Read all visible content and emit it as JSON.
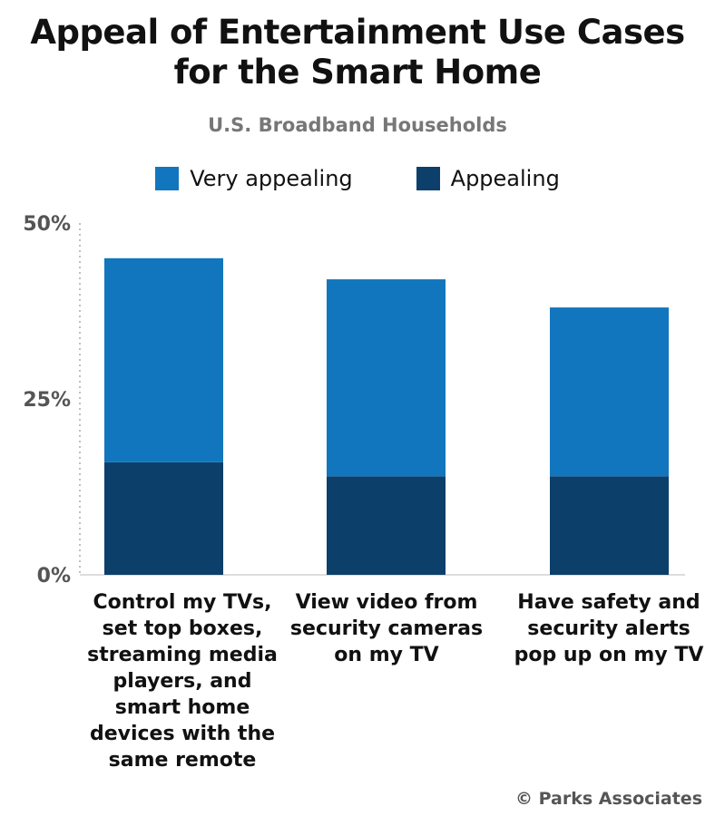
{
  "chart_data": {
    "type": "bar",
    "stacked": true,
    "title": "Appeal of Entertainment Use Cases for the Smart Home",
    "title_lines": [
      "Appeal of Entertainment Use Cases",
      "for the Smart Home"
    ],
    "subtitle": "U.S. Broadband Households",
    "categories": [
      "Control my TVs, set top boxes, streaming media players, and smart home devices with the same remote",
      "View video from security cameras on my TV",
      "Have safety and security alerts pop up on my TV"
    ],
    "series": [
      {
        "name": "Appealing",
        "color": "#0d3f6b",
        "values": [
          16,
          14,
          14
        ]
      },
      {
        "name": "Very appealing",
        "color": "#1176bd",
        "values": [
          29,
          28,
          24
        ]
      }
    ],
    "legend_order": [
      "Very appealing",
      "Appealing"
    ],
    "legend_placement": "top",
    "yticks": [
      "0%",
      "25%",
      "50%"
    ],
    "ytick_values": [
      0,
      25,
      50
    ],
    "ylim": [
      0,
      50
    ],
    "xlabel": "",
    "ylabel": "",
    "grid": false,
    "credit": "© Parks Associates"
  }
}
